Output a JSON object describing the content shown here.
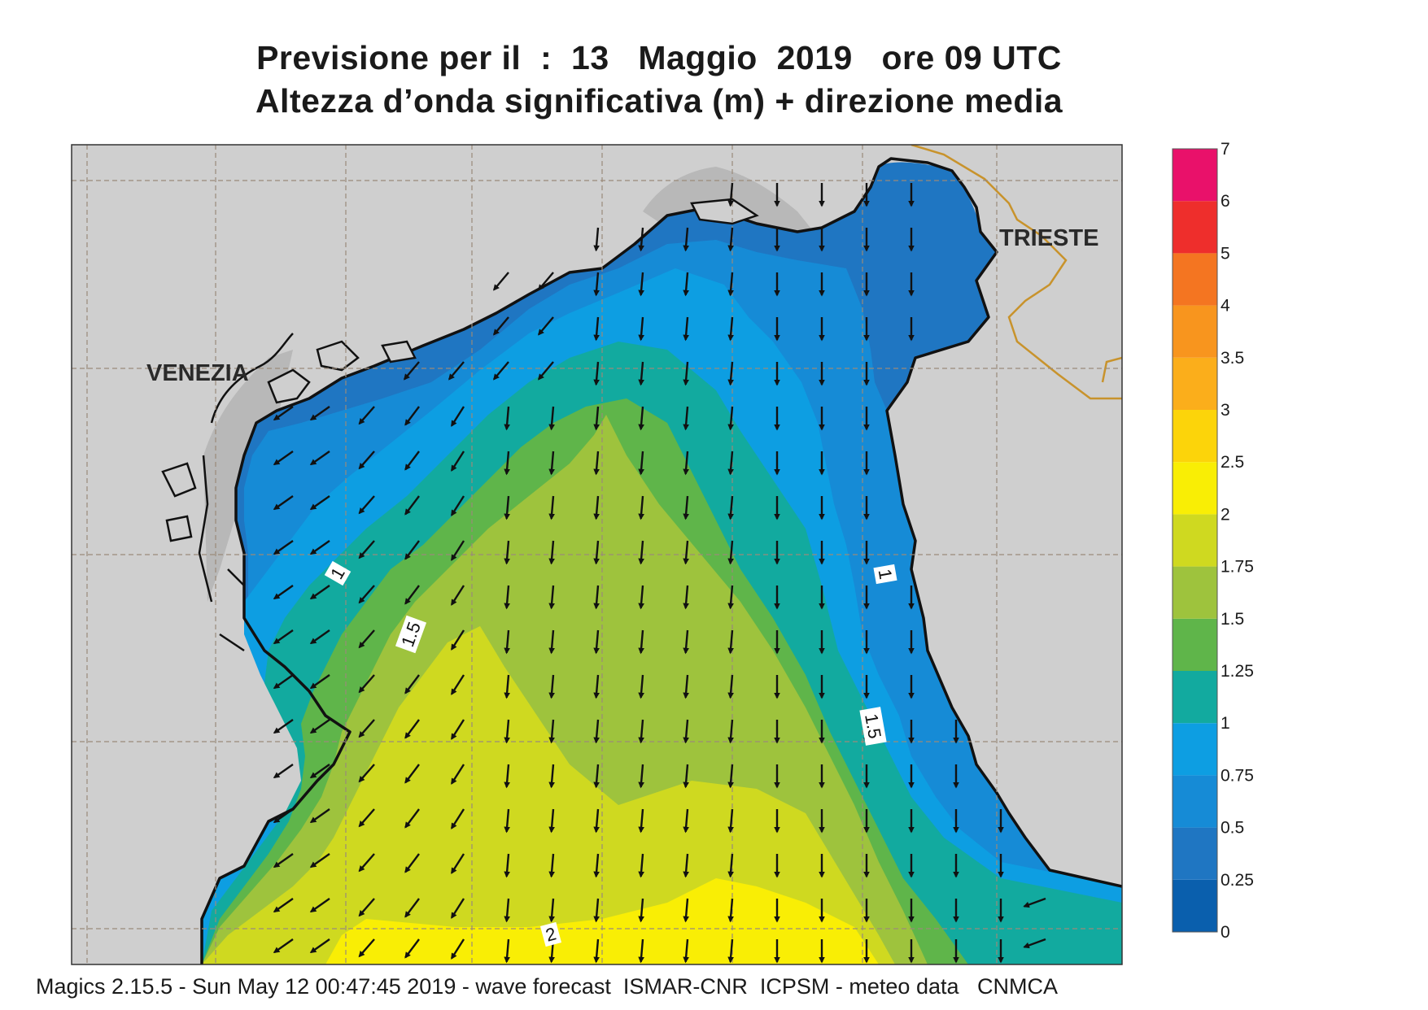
{
  "title": {
    "line1": "Previsione per il  :  13   Maggio  2019   ore 09 UTC",
    "line2": "Altezza d’onda significativa (m) + direzione media"
  },
  "footer": "Magics 2.15.5 - Sun May 12 00:47:45 2019 - wave forecast  ISMAR-CNR  ICPSM - meteo data   CNMCA",
  "cities": [
    {
      "name": "VENEZIA"
    },
    {
      "name": "TRIESTE"
    }
  ],
  "contour_labels": [
    "1",
    "1.5",
    "1",
    "1.5",
    "2"
  ],
  "colorbar": {
    "ticks": [
      "0",
      "0.25",
      "0.5",
      "0.75",
      "1",
      "1.25",
      "1.5",
      "1.75",
      "2",
      "2.5",
      "3",
      "3.5",
      "4",
      "5",
      "6",
      "7"
    ],
    "colors": [
      "#0a5fad",
      "#1f76c2",
      "#168bd6",
      "#0d9ee2",
      "#12aa9f",
      "#5fb54a",
      "#9ec33d",
      "#cfd920",
      "#f9ee05",
      "#fcd40a",
      "#fbae1b",
      "#f8951e",
      "#f47521",
      "#ee2e2c",
      "#e9116a"
    ]
  },
  "colors": {
    "land": "#cfcfcf",
    "coast": "#111111",
    "border": "#c8932c",
    "grid": "#9a8a7a"
  }
}
